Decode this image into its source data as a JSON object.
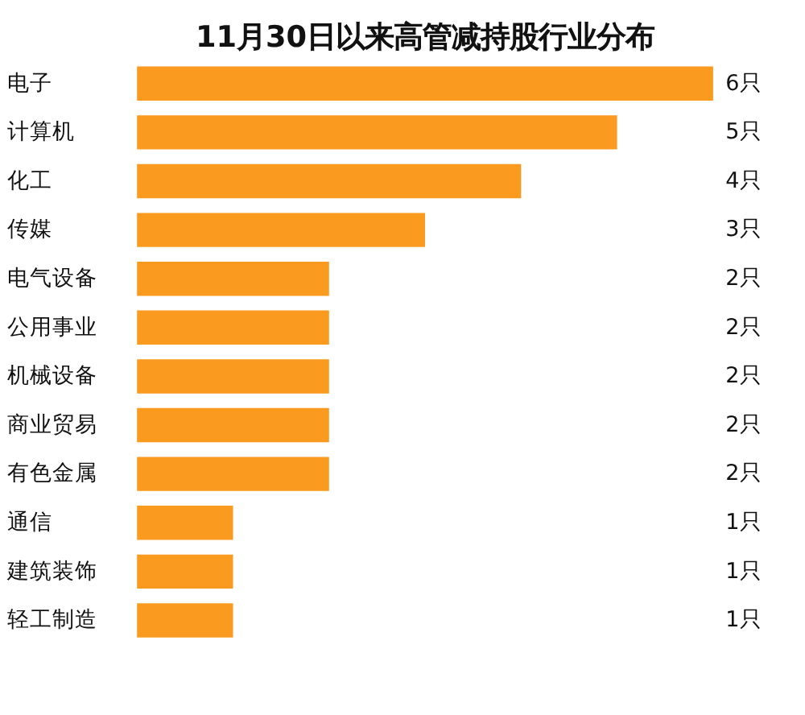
{
  "chart_data": {
    "type": "bar",
    "orientation": "horizontal",
    "title": "11月30日以来高管减持股行业分布",
    "categories": [
      "电子",
      "计算机",
      "化工",
      "传媒",
      "电气设备",
      "公用事业",
      "机械设备",
      "商业贸易",
      "有色金属",
      "通信",
      "建筑装饰",
      "轻工制造"
    ],
    "values": [
      6,
      5,
      4,
      3,
      2,
      2,
      2,
      2,
      2,
      1,
      1,
      1
    ],
    "value_labels": [
      "6只",
      "5只",
      "4只",
      "3只",
      "2只",
      "2只",
      "2只",
      "2只",
      "2只",
      "1只",
      "1只",
      "1只"
    ],
    "color": "#fa9a1e",
    "grid": false
  }
}
